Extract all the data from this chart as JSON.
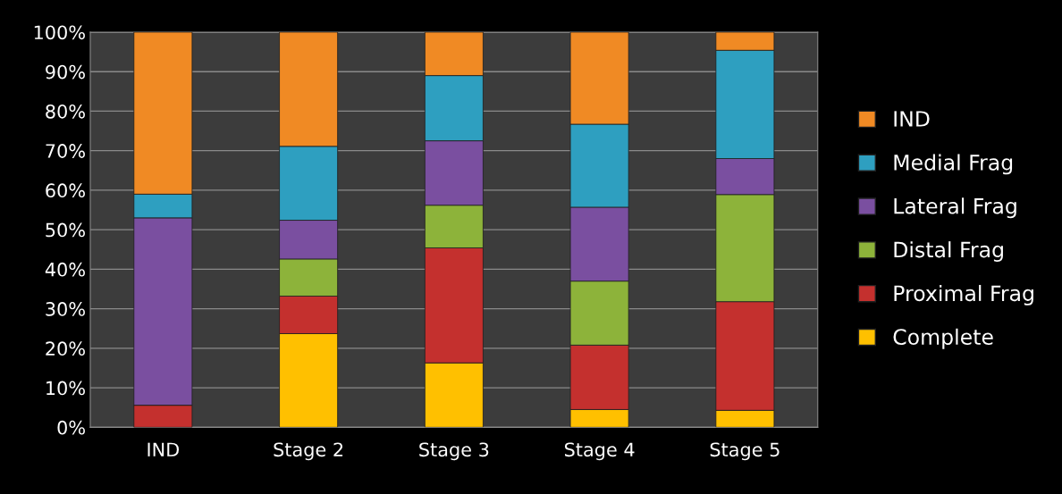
{
  "chart_data": {
    "type": "bar",
    "stacked": true,
    "categories": [
      "IND",
      "Stage 2",
      "Stage 3",
      "Stage 4",
      "Stage 5"
    ],
    "series": [
      {
        "name": "Complete",
        "color": "#ffc000",
        "values": [
          0,
          23.7,
          16.3,
          4.5,
          4.3
        ]
      },
      {
        "name": "Proximal Frag",
        "color": "#c4302e",
        "values": [
          5.6,
          9.5,
          29.1,
          16.3,
          27.5
        ]
      },
      {
        "name": "Distal Frag",
        "color": "#8db33a",
        "values": [
          0,
          9.4,
          10.8,
          16.2,
          27.1
        ]
      },
      {
        "name": "Lateral Frag",
        "color": "#7a4fa0",
        "values": [
          47.4,
          9.8,
          16.3,
          18.7,
          9.1
        ]
      },
      {
        "name": "Medial Frag",
        "color": "#2e9fc0",
        "values": [
          6.0,
          18.7,
          16.5,
          21.0,
          27.4
        ]
      },
      {
        "name": "IND",
        "color": "#f08a24",
        "values": [
          41.0,
          28.9,
          11.0,
          23.3,
          4.6
        ]
      }
    ],
    "ylim": [
      0,
      100
    ],
    "yticks": [
      {
        "value": 0,
        "label": "0%"
      },
      {
        "value": 10,
        "label": "10%"
      },
      {
        "value": 20,
        "label": "20%"
      },
      {
        "value": 30,
        "label": "30%"
      },
      {
        "value": 40,
        "label": "40%"
      },
      {
        "value": 50,
        "label": "50%"
      },
      {
        "value": 60,
        "label": "60%"
      },
      {
        "value": 70,
        "label": "70%"
      },
      {
        "value": 80,
        "label": "80%"
      },
      {
        "value": 90,
        "label": "90%"
      },
      {
        "value": 100,
        "label": "100%"
      }
    ],
    "grid": "y",
    "legend": "right"
  }
}
